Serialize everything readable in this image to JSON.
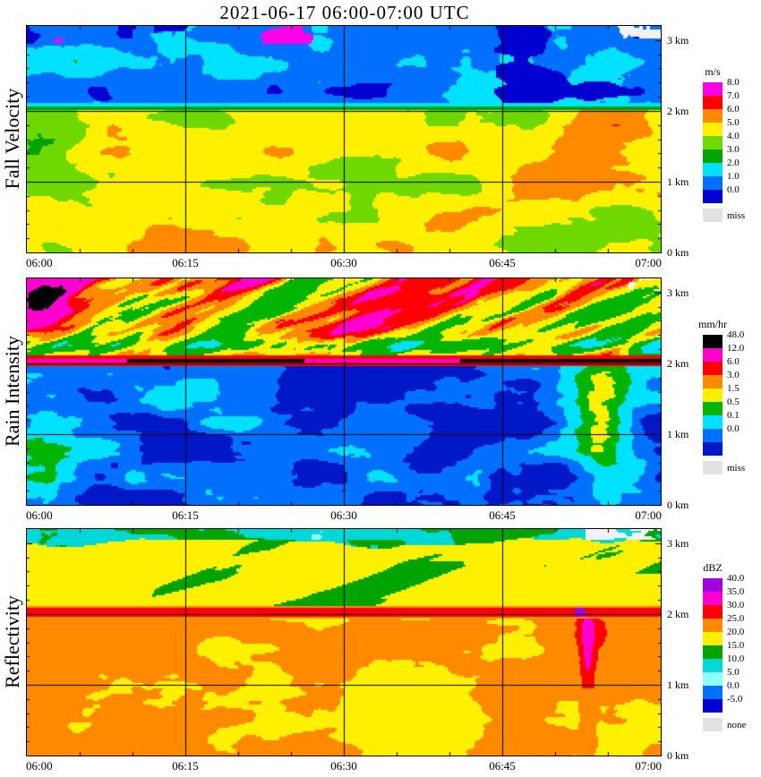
{
  "title": "2021-06-17  06:00-07:00 UTC",
  "time_axis": {
    "ticks": [
      "06:00",
      "06:15",
      "06:30",
      "06:45",
      "07:00"
    ],
    "minor_tick_minutes": 5
  },
  "height_axis": {
    "unit": "km",
    "range_km": [
      0,
      3.2
    ],
    "ticks": [
      {
        "label": "3 km",
        "km": 3
      },
      {
        "label": "2 km",
        "km": 2
      },
      {
        "label": "1 km",
        "km": 1
      },
      {
        "label": "0 km",
        "km": 0
      }
    ]
  },
  "panels": [
    {
      "id": "fall_velocity",
      "ylabel": "Fall Velocity",
      "unit": "m/s",
      "colorbar": [
        {
          "label": "8.0",
          "color": "#FF00E8"
        },
        {
          "label": "7.0",
          "color": "#FF0000"
        },
        {
          "label": "6.0",
          "color": "#FF8A00"
        },
        {
          "label": "5.0",
          "color": "#FFF000"
        },
        {
          "label": "4.0",
          "color": "#6FD800"
        },
        {
          "label": "3.0",
          "color": "#00A400"
        },
        {
          "label": "2.0",
          "color": "#00E0FF"
        },
        {
          "label": "1.0",
          "color": "#0070FF"
        },
        {
          "label": "0.0",
          "color": "#0000D0"
        }
      ],
      "missing": {
        "label": "miss",
        "color": "#E2E2E2"
      }
    },
    {
      "id": "rain_intensity",
      "ylabel": "Rain Intensity",
      "unit": "mm/hr",
      "colorbar": [
        {
          "label": "48.0",
          "color": "#000000"
        },
        {
          "label": "12.0",
          "color": "#FF00D0"
        },
        {
          "label": "6.0",
          "color": "#FF0000"
        },
        {
          "label": "3.0",
          "color": "#FF8A00"
        },
        {
          "label": "1.5",
          "color": "#FFF000"
        },
        {
          "label": "0.5",
          "color": "#00B400"
        },
        {
          "label": "0.1",
          "color": "#00E0FF"
        },
        {
          "label": "0.0",
          "color": "#0070FF"
        },
        {
          "label": "",
          "color": "#0018C8"
        }
      ],
      "missing": {
        "label": "miss",
        "color": "#E2E2E2"
      }
    },
    {
      "id": "reflectivity",
      "ylabel": "Reflectivity",
      "unit": "dBZ",
      "colorbar": [
        {
          "label": "40.0",
          "color": "#A000E0"
        },
        {
          "label": "35.0",
          "color": "#FF00D0"
        },
        {
          "label": "30.0",
          "color": "#FF0000"
        },
        {
          "label": "25.0",
          "color": "#FF8A00"
        },
        {
          "label": "20.0",
          "color": "#FFF000"
        },
        {
          "label": "15.0",
          "color": "#00A400"
        },
        {
          "label": "10.0",
          "color": "#00D8D8"
        },
        {
          "label": "5.0",
          "color": "#90FFFF"
        },
        {
          "label": "0.0",
          "color": "#0070FF"
        },
        {
          "label": "-5.0",
          "color": "#0000D0"
        }
      ],
      "missing": {
        "label": "none",
        "color": "#E2E2E2"
      }
    }
  ],
  "chart_data": [
    {
      "type": "heatmap",
      "panel": "Fall Velocity",
      "value_unit": "m/s",
      "x_ticks": [
        "06:00",
        "06:15",
        "06:30",
        "06:45",
        "07:00"
      ],
      "y_ticks_km": [
        0,
        1,
        2,
        3
      ],
      "y_range_km": [
        0,
        3.2
      ],
      "color_levels": [
        8.0,
        7.0,
        6.0,
        5.0,
        4.0,
        3.0,
        2.0,
        1.0,
        0.0
      ],
      "features": [
        "melting-layer bright band at ~2.0 km across the whole hour (thin cyan/green transition line)",
        "above 2 km: fall velocities ~1-2 m/s (blue, ice/snow) with darker 0-1 m/s patches",
        "below 2 km: ~5 m/s (yellow, rain) with 3-4 m/s green patches and a 6 m/s orange pocket 06:45-06:55 at 1.2-1.9 km",
        "magenta ~8 m/s specks near 3 km around 06:03 and 06:25",
        "missing-data (white) specks at the top right corner"
      ],
      "coarse_grid": {
        "time_cols_utc": [
          "06:00",
          "06:05",
          "06:10",
          "06:15",
          "06:20",
          "06:25",
          "06:30",
          "06:35",
          "06:40",
          "06:45",
          "06:50",
          "06:55"
        ],
        "height_rows_km": [
          3.0,
          2.6,
          2.2,
          1.8,
          1.4,
          1.0,
          0.6,
          0.2
        ],
        "values": [
          [
            1.5,
            1.5,
            2,
            1.5,
            1.5,
            2,
            1.5,
            1.5,
            1.5,
            2,
            1.5,
            1.5
          ],
          [
            1.5,
            2,
            1.5,
            1.5,
            1.5,
            1.5,
            2,
            1.5,
            2,
            1.5,
            1.5,
            2
          ],
          [
            1.5,
            1.5,
            1.5,
            2,
            1.5,
            1.5,
            1.5,
            2,
            1.5,
            1.5,
            2,
            1.5
          ],
          [
            4,
            5,
            5,
            5,
            5,
            5,
            5,
            5,
            5,
            5,
            6,
            6
          ],
          [
            4,
            4,
            5,
            5,
            5,
            4,
            5,
            5,
            5,
            5,
            6,
            6
          ],
          [
            5,
            4,
            5,
            5,
            4,
            5,
            5,
            4,
            5,
            5,
            5,
            6
          ],
          [
            5,
            5,
            5,
            4,
            5,
            5,
            4,
            5,
            5,
            5,
            5,
            5
          ],
          [
            5,
            5,
            5,
            5,
            5,
            4,
            5,
            5,
            5,
            5,
            5,
            5
          ]
        ]
      }
    },
    {
      "type": "heatmap",
      "panel": "Rain Intensity",
      "value_unit": "mm/hr",
      "x_ticks": [
        "06:00",
        "06:15",
        "06:30",
        "06:45",
        "07:00"
      ],
      "y_ticks_km": [
        0,
        1,
        2,
        3
      ],
      "y_range_km": [
        0,
        3.2
      ],
      "color_levels": [
        48.0,
        12.0,
        6.0,
        3.0,
        1.5,
        0.5,
        0.1,
        0.0
      ],
      "features": [
        "apparent 12-48+ mm/hr bright-band line at ~2.0 km, darkest (black) 06:15-06:25 and 06:50-07:00",
        "streaky 0.5-12 mm/hr aggregates above 2.2 km, magenta blob near 06:01 at 2.8 km",
        "mostly 0.0-0.5 mm/hr (deep blue) below 2 km with cyan patches near 06:00 low levels",
        "0.5-1.5 mm/hr green column near 06:52-06:57 below 2 km",
        "missing-data specks at the top right corner"
      ],
      "coarse_grid": {
        "time_cols_utc": [
          "06:00",
          "06:05",
          "06:10",
          "06:15",
          "06:20",
          "06:25",
          "06:30",
          "06:35",
          "06:40",
          "06:45",
          "06:50",
          "06:55"
        ],
        "height_rows_km": [
          3.0,
          2.6,
          2.2,
          1.8,
          1.4,
          1.0,
          0.6,
          0.2
        ],
        "values": [
          [
            8,
            4,
            6,
            3,
            6,
            8,
            3,
            6,
            4,
            8,
            10,
            4
          ],
          [
            6,
            3,
            8,
            6,
            2,
            6,
            8,
            4,
            6,
            10,
            8,
            6
          ],
          [
            3,
            2,
            4,
            2,
            3,
            2,
            4,
            3,
            2,
            4,
            6,
            4
          ],
          [
            0.05,
            0.05,
            0.1,
            0.05,
            0.05,
            0.05,
            0.05,
            0.05,
            0.05,
            0.1,
            1.0,
            0.5
          ],
          [
            0.2,
            0.05,
            0.05,
            0.05,
            0.05,
            0.05,
            0.05,
            0.05,
            0.05,
            0.05,
            1.0,
            0.3
          ],
          [
            0.3,
            0.1,
            0.05,
            0.05,
            0.05,
            0.1,
            0.05,
            0.05,
            0.05,
            0.05,
            1.0,
            0.2
          ],
          [
            0.3,
            0.1,
            0.05,
            0.05,
            0.5,
            0.05,
            0.05,
            0.1,
            0.05,
            0.05,
            0.5,
            0.1
          ],
          [
            0.2,
            0.1,
            0.05,
            0.3,
            0.05,
            0.5,
            0.05,
            0.05,
            0.1,
            0.05,
            0.3,
            0.1
          ]
        ]
      }
    },
    {
      "type": "heatmap",
      "panel": "Reflectivity",
      "value_unit": "dBZ",
      "x_ticks": [
        "06:00",
        "06:15",
        "06:30",
        "06:45",
        "07:00"
      ],
      "y_ticks_km": [
        0,
        1,
        2,
        3
      ],
      "y_range_km": [
        0,
        3.2
      ],
      "color_levels": [
        40.0,
        35.0,
        30.0,
        25.0,
        20.0,
        15.0,
        10.0,
        5.0,
        0.0,
        -5.0
      ],
      "features": [
        "15-20 dBZ (green) layer near 3 km with 10-15 dBZ cyan patches and a 5-10 dBZ band near the top middle",
        "20-25 dBZ (yellow) layer 2.2-2.9 km with green fall streaks",
        "30-35 dBZ red bright band at ~2.0 km with a >40 dBZ purple speck near 06:52",
        "25-30 dBZ (orange) rain below 2 km with 20-25 dBZ yellow patches and a 30+ dBZ vertical streak near 06:53",
        "'none' (no signal) grey patch at the top right corner"
      ],
      "coarse_grid": {
        "time_cols_utc": [
          "06:00",
          "06:05",
          "06:10",
          "06:15",
          "06:20",
          "06:25",
          "06:30",
          "06:35",
          "06:40",
          "06:45",
          "06:50",
          "06:55"
        ],
        "height_rows_km": [
          3.0,
          2.6,
          2.2,
          1.8,
          1.4,
          1.0,
          0.6,
          0.2
        ],
        "values": [
          [
            15,
            15,
            12,
            15,
            15,
            12,
            15,
            15,
            12,
            15,
            15,
            15
          ],
          [
            22,
            18,
            22,
            22,
            18,
            22,
            22,
            18,
            22,
            22,
            22,
            22
          ],
          [
            22,
            22,
            18,
            22,
            22,
            22,
            18,
            22,
            22,
            22,
            22,
            22
          ],
          [
            26,
            26,
            26,
            26,
            26,
            26,
            26,
            26,
            26,
            26,
            30,
            26
          ],
          [
            26,
            22,
            26,
            26,
            26,
            22,
            26,
            26,
            22,
            26,
            30,
            26
          ],
          [
            26,
            26,
            22,
            26,
            22,
            26,
            26,
            22,
            26,
            26,
            26,
            26
          ],
          [
            26,
            26,
            26,
            22,
            22,
            26,
            22,
            26,
            26,
            26,
            26,
            26
          ],
          [
            26,
            26,
            26,
            26,
            26,
            26,
            26,
            26,
            26,
            26,
            26,
            26
          ]
        ]
      }
    }
  ]
}
